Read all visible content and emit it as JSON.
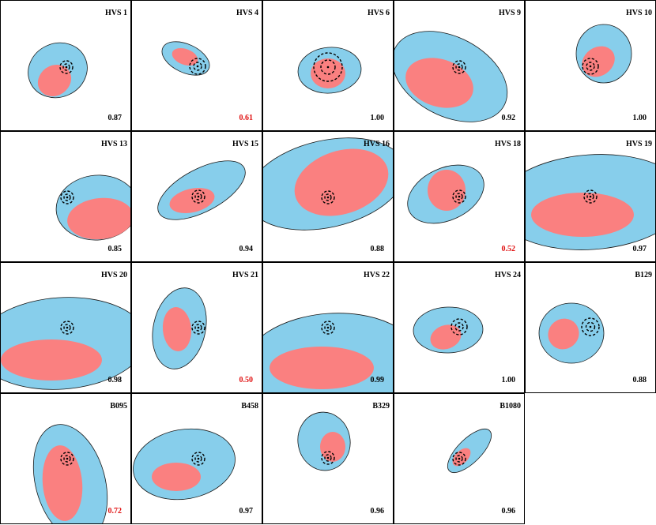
{
  "panels": [
    {
      "name": "HVS 1",
      "score": "0.87",
      "flag": false
    },
    {
      "name": "HVS 4",
      "score": "0.61",
      "flag": true
    },
    {
      "name": "HVS 6",
      "score": "1.00",
      "flag": false
    },
    {
      "name": "HVS 9",
      "score": "0.92",
      "flag": false
    },
    {
      "name": "HVS 10",
      "score": "1.00",
      "flag": false
    },
    {
      "name": "HVS 13",
      "score": "0.85",
      "flag": false
    },
    {
      "name": "HVS 15",
      "score": "0.94",
      "flag": false
    },
    {
      "name": "HVS 16",
      "score": "0.88",
      "flag": false
    },
    {
      "name": "HVS 18",
      "score": "0.52",
      "flag": true
    },
    {
      "name": "HVS 19",
      "score": "0.97",
      "flag": false
    },
    {
      "name": "HVS 20",
      "score": "0.98",
      "flag": false
    },
    {
      "name": "HVS 21",
      "score": "0.50",
      "flag": true
    },
    {
      "name": "HVS 22",
      "score": "0.99",
      "flag": false
    },
    {
      "name": "HVS 24",
      "score": "1.00",
      "flag": false
    },
    {
      "name": "B129",
      "score": "0.88",
      "flag": false
    },
    {
      "name": "B095",
      "score": "0.72",
      "flag": true
    },
    {
      "name": "B458",
      "score": "0.97",
      "flag": false
    },
    {
      "name": "B329",
      "score": "0.96",
      "flag": false
    },
    {
      "name": "B1080",
      "score": "0.96",
      "flag": false
    }
  ],
  "colors": {
    "outer_region": "#87CEEB",
    "inner_region": "#FA8080",
    "flag_text": "#E01010",
    "text": "#000000"
  }
}
